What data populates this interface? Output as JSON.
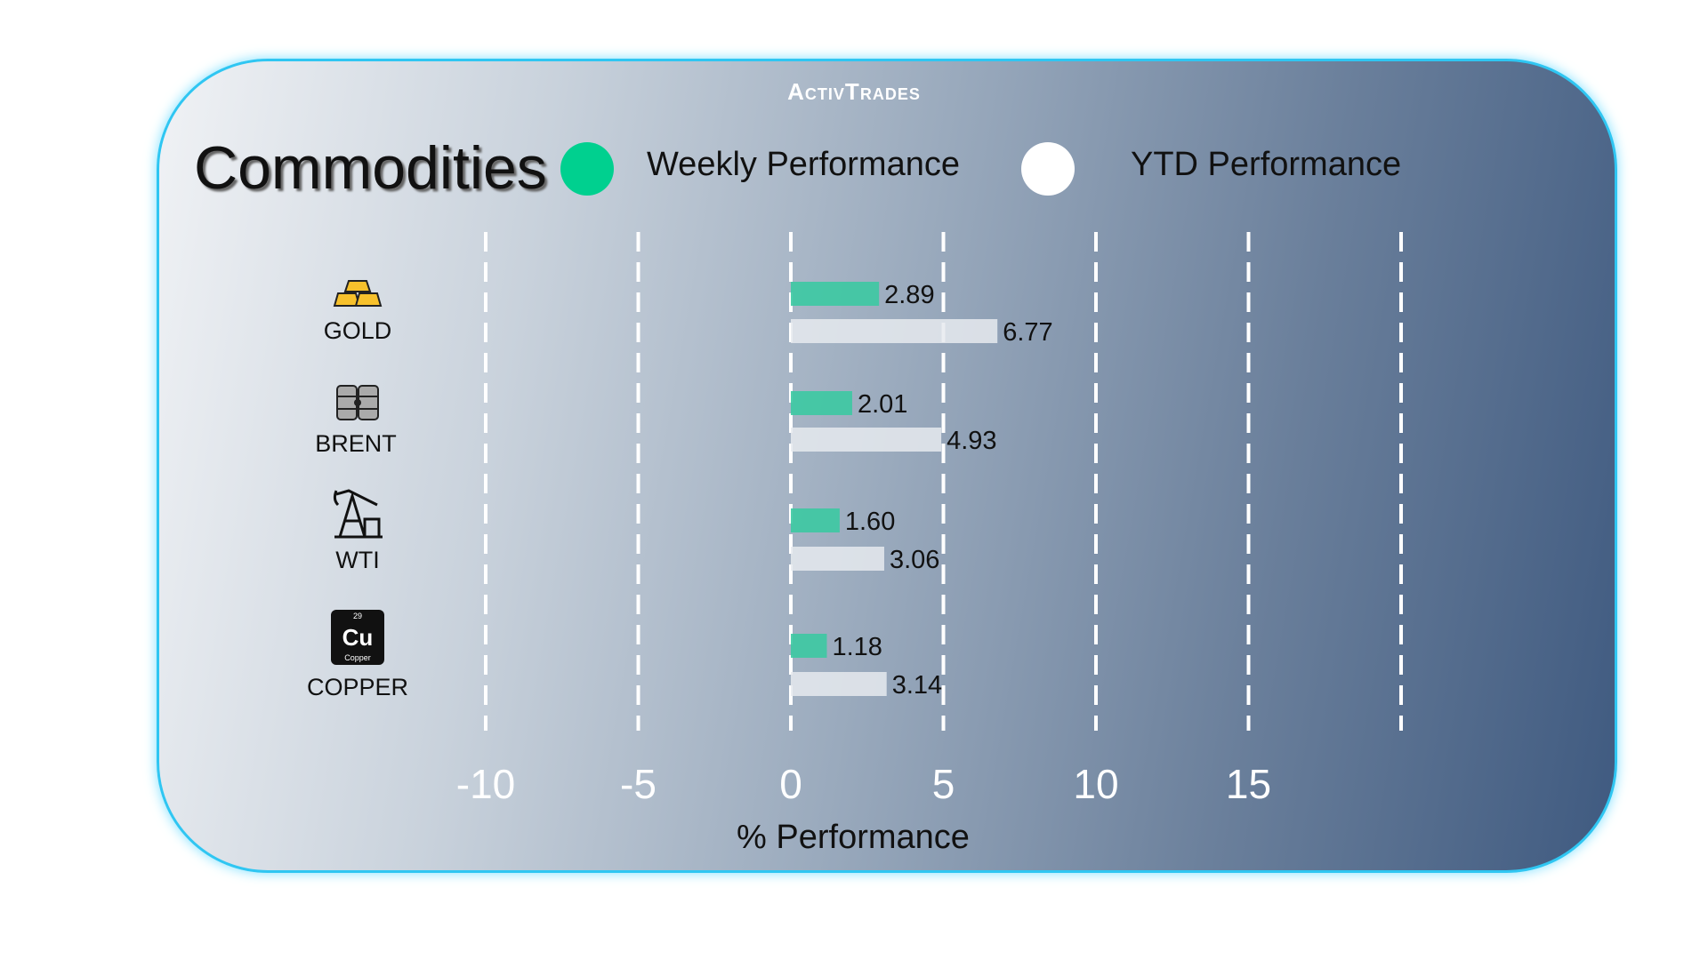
{
  "brand": "ActivTrades",
  "title": "Commodities",
  "legend": [
    {
      "label": "Weekly Performance",
      "color": "#00d08f"
    },
    {
      "label": "YTD Performance",
      "color": "#ffffff"
    }
  ],
  "chart_data": {
    "type": "bar",
    "orientation": "horizontal",
    "categories": [
      "GOLD",
      "BRENT",
      "WTI",
      "COPPER"
    ],
    "series": [
      {
        "name": "Weekly Performance",
        "values": [
          2.89,
          2.01,
          1.6,
          1.18
        ],
        "labels": [
          "2.89",
          "2.01",
          "1.60",
          "1.18"
        ],
        "color": "#3cc9a2"
      },
      {
        "name": "YTD Performance",
        "values": [
          6.77,
          4.93,
          3.06,
          3.14
        ],
        "labels": [
          "6.77",
          "4.93",
          "3.06",
          "3.14"
        ],
        "color": "#e6eaef"
      }
    ],
    "xlabel": "% Performance",
    "xlim": [
      -10,
      20
    ],
    "xticks": [
      "-10",
      "-5",
      "0",
      "5",
      "10",
      "15"
    ],
    "grid": "dashed vertical",
    "legend_position": "top"
  },
  "icons": [
    "gold-bars-icon",
    "oil-barrels-icon",
    "oil-pump-icon",
    "copper-element-icon"
  ],
  "copper_icon": {
    "symbol": "Cu",
    "number": "29",
    "name": "Copper"
  }
}
